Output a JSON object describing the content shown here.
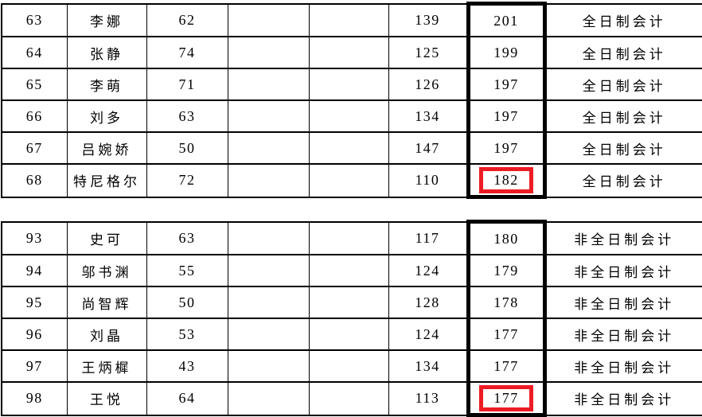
{
  "page": {
    "background": "#ffffff",
    "description": "two stacked grade-list table fragments with a thick black frame around the total-score column and red boxes around cutoff scores"
  },
  "colors": {
    "text": "#000000",
    "grid_border": "#000000",
    "thick_frame": "#000000",
    "red_highlight": "#ed1c24"
  },
  "columns": {
    "count": 8,
    "roles": [
      "rank-number",
      "name",
      "score-1",
      "empty",
      "empty",
      "score-2",
      "total-score",
      "program"
    ]
  },
  "tables": [
    {
      "name": "full-time-group",
      "rows": [
        {
          "cells": [
            "63",
            "李娜",
            "62",
            "",
            "",
            "139",
            "201",
            "全日制会计"
          ],
          "red_box": false
        },
        {
          "cells": [
            "64",
            "张静",
            "74",
            "",
            "",
            "125",
            "199",
            "全日制会计"
          ],
          "red_box": false
        },
        {
          "cells": [
            "65",
            "李萌",
            "71",
            "",
            "",
            "126",
            "197",
            "全日制会计"
          ],
          "red_box": false
        },
        {
          "cells": [
            "66",
            "刘多",
            "63",
            "",
            "",
            "134",
            "197",
            "全日制会计"
          ],
          "red_box": false
        },
        {
          "cells": [
            "67",
            "吕婉娇",
            "50",
            "",
            "",
            "147",
            "197",
            "全日制会计"
          ],
          "red_box": false
        },
        {
          "cells": [
            "68",
            "特尼格尔",
            "72",
            "",
            "",
            "110",
            "182",
            "全日制会计"
          ],
          "red_box": true
        }
      ]
    },
    {
      "name": "part-time-group",
      "rows": [
        {
          "cells": [
            "93",
            "史可",
            "63",
            "",
            "",
            "117",
            "180",
            "非全日制会计"
          ],
          "red_box": false
        },
        {
          "cells": [
            "94",
            "邬书渊",
            "55",
            "",
            "",
            "124",
            "179",
            "非全日制会计"
          ],
          "red_box": false
        },
        {
          "cells": [
            "95",
            "尚智辉",
            "50",
            "",
            "",
            "128",
            "178",
            "非全日制会计"
          ],
          "red_box": false
        },
        {
          "cells": [
            "96",
            "刘晶",
            "53",
            "",
            "",
            "124",
            "177",
            "非全日制会计"
          ],
          "red_box": false
        },
        {
          "cells": [
            "97",
            "王炳樨",
            "43",
            "",
            "",
            "134",
            "177",
            "非全日制会计"
          ],
          "red_box": false
        },
        {
          "cells": [
            "98",
            "王悦",
            "64",
            "",
            "",
            "113",
            "177",
            "非全日制会计"
          ],
          "red_box": true
        }
      ]
    }
  ]
}
